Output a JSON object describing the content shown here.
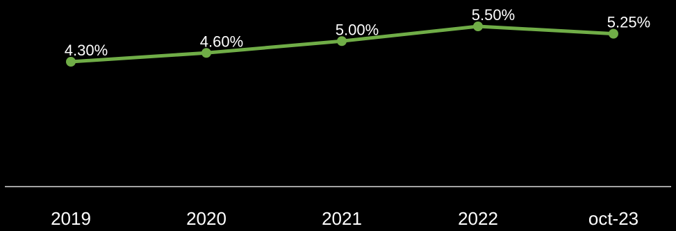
{
  "chart_data": {
    "type": "line",
    "categories": [
      "2019",
      "2020",
      "2021",
      "2022",
      "oct-23"
    ],
    "values": [
      4.3,
      4.6,
      5.0,
      5.5,
      5.25
    ],
    "data_labels": [
      "4.30%",
      "4.60%",
      "5.00%",
      "5.50%",
      "5.25%"
    ],
    "title": "",
    "xlabel": "",
    "ylabel": "",
    "grid": false,
    "legend": "none",
    "colors": {
      "background": "#000000",
      "line": "#70ad47",
      "axis": "#d9d9d9",
      "text": "#ffffff"
    }
  }
}
